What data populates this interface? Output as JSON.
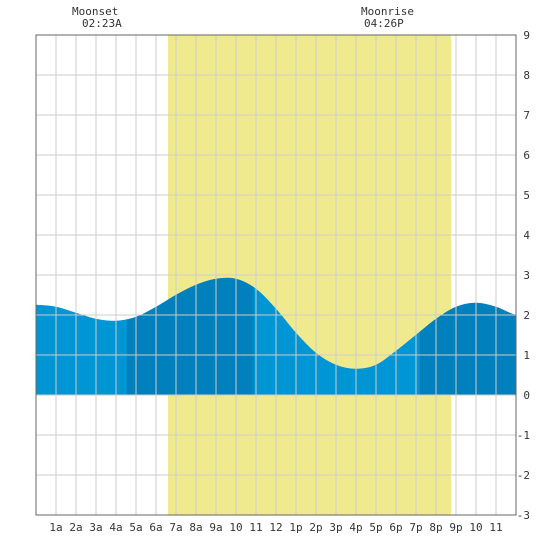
{
  "chart_data": {
    "type": "area",
    "title": "",
    "xlabel": "",
    "ylabel": "",
    "x_range_hours": [
      0,
      24
    ],
    "ylim": [
      -3,
      9
    ],
    "y_ticks": [
      "-3",
      "-2",
      "-1",
      "0",
      "1",
      "2",
      "3",
      "4",
      "5",
      "6",
      "7",
      "8",
      "9"
    ],
    "x_tick_labels": [
      "1a",
      "2a",
      "3a",
      "4a",
      "5a",
      "6a",
      "7a",
      "8a",
      "9a",
      "10",
      "11",
      "12",
      "1p",
      "2p",
      "3p",
      "4p",
      "5p",
      "6p",
      "7p",
      "8p",
      "9p",
      "10",
      "11"
    ],
    "grid": true,
    "daylight": {
      "start_hour": 6.6,
      "end_hour": 20.75,
      "color": "#f0ea8e"
    },
    "annotations": [
      {
        "name": "moonset",
        "label": "Moonset",
        "time": "02:23A",
        "hour": 2.38
      },
      {
        "name": "moonrise",
        "label": "Moonrise",
        "time": "04:26P",
        "hour": 16.43
      }
    ],
    "series": [
      {
        "x": [
          0,
          1,
          2,
          3,
          4,
          5,
          6,
          7,
          8,
          9,
          10,
          11,
          12,
          13,
          14,
          15,
          16,
          17,
          18,
          19,
          20,
          21,
          22,
          23,
          24
        ],
        "values": [
          2.25,
          2.2,
          2.05,
          1.9,
          1.85,
          1.95,
          2.2,
          2.5,
          2.75,
          2.9,
          2.9,
          2.65,
          2.15,
          1.55,
          1.05,
          0.75,
          0.65,
          0.75,
          1.1,
          1.5,
          1.9,
          2.2,
          2.3,
          2.2,
          2.0
        ]
      }
    ],
    "tide_segments": [
      {
        "start_hour": 0,
        "end_hour": 4.55,
        "color": "#0096d6"
      },
      {
        "start_hour": 4.55,
        "end_hour": 10.9,
        "color": "#0080bd"
      },
      {
        "start_hour": 10.9,
        "end_hour": 19.2,
        "color": "#0096d6"
      },
      {
        "start_hour": 19.2,
        "end_hour": 24,
        "color": "#0080bd"
      }
    ],
    "colors": {
      "grid": "#cccccc",
      "frame": "#666666",
      "text": "#333333"
    }
  }
}
